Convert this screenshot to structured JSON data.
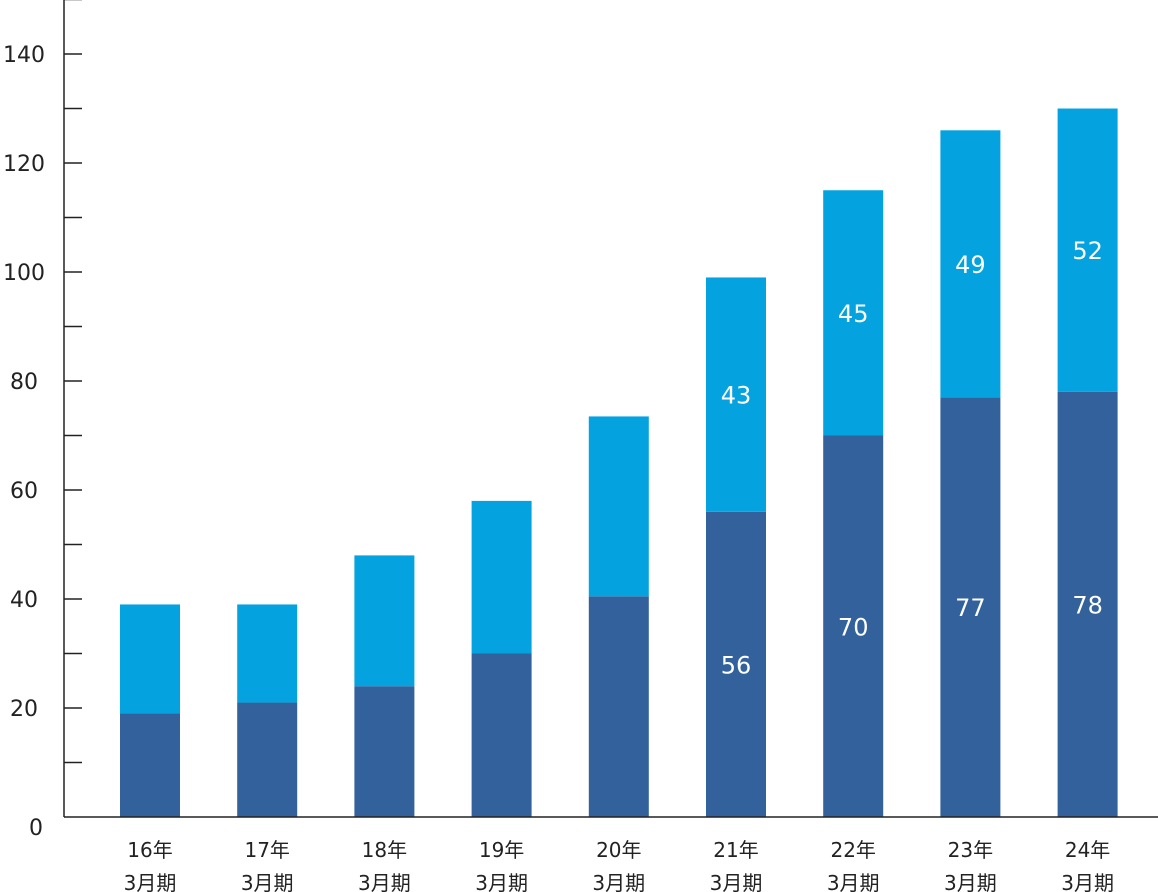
{
  "chart_data": {
    "type": "bar",
    "stacked": true,
    "categories": [
      [
        "16年",
        "3月期"
      ],
      [
        "17年",
        "3月期"
      ],
      [
        "18年",
        "3月期"
      ],
      [
        "19年",
        "3月期"
      ],
      [
        "20年",
        "3月期"
      ],
      [
        "21年",
        "3月期"
      ],
      [
        "22年",
        "3月期"
      ],
      [
        "23年",
        "3月期"
      ],
      [
        "24年",
        "3月期"
      ]
    ],
    "series": [
      {
        "color": "#33619c",
        "values": [
          19,
          21,
          24,
          30,
          40.5,
          56,
          70,
          77,
          78
        ],
        "labels": [
          "",
          "",
          "",
          "",
          "",
          "56",
          "70",
          "77",
          "78"
        ]
      },
      {
        "color": "#04a3e0",
        "values": [
          20,
          18,
          24,
          28,
          33,
          43,
          45,
          49,
          52
        ],
        "labels": [
          "",
          "",
          "",
          "",
          "",
          "43",
          "45",
          "49",
          "52"
        ]
      }
    ],
    "ylim": [
      0,
      150
    ],
    "yticks": [
      0,
      20,
      40,
      60,
      80,
      100,
      120,
      140
    ],
    "minor_ticks": [
      10,
      30,
      50,
      70,
      90,
      110,
      130,
      150
    ],
    "title": "",
    "xlabel": "",
    "ylabel": "",
    "grid": false,
    "legend": "none"
  }
}
